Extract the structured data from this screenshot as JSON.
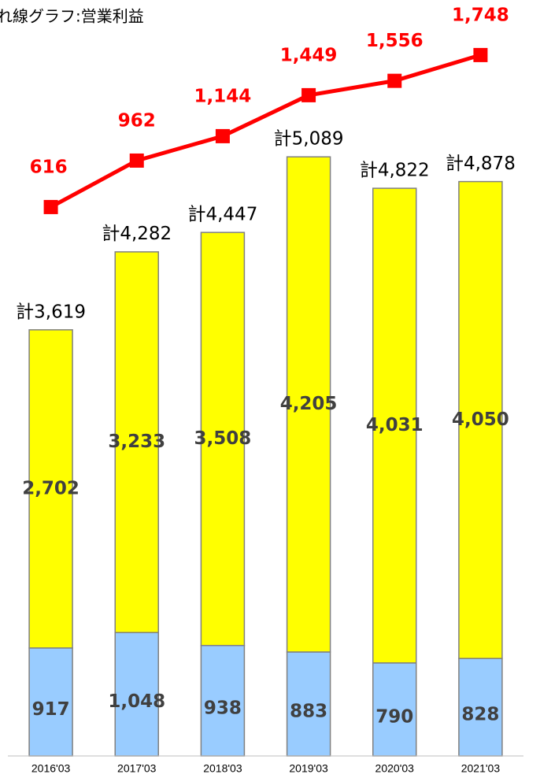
{
  "chart_data": {
    "type": "bar_line",
    "title": "れ線グラフ:営業利益",
    "categories": [
      "2016'03",
      "2017'03",
      "2018'03",
      "2019'03",
      "2020'03",
      "2021'03"
    ],
    "series": [
      {
        "color": "#99ccff",
        "values": [
          917,
          1048,
          938,
          883,
          790,
          828
        ],
        "value_labels": [
          "917",
          "1,048",
          "938",
          "883",
          "790",
          "828"
        ]
      },
      {
        "color": "#ffff00",
        "values": [
          2702,
          3233,
          3508,
          4205,
          4031,
          4050
        ],
        "value_labels": [
          "2,702",
          "3,233",
          "3,508",
          "4,205",
          "4,031",
          "4,050"
        ]
      },
      {
        "type": "line",
        "axis": "y2",
        "color": "#ff0000",
        "values": [
          616,
          962,
          1144,
          1449,
          1556,
          1748
        ],
        "value_labels": [
          "616",
          "962",
          "1,144",
          "1,449",
          "1,556",
          "1,748"
        ]
      }
    ],
    "totals": {
      "values": [
        3619,
        4282,
        4447,
        5089,
        4822,
        4878
      ],
      "value_labels": [
        "計3,619",
        "計4,282",
        "計4,447",
        "計5,089",
        "計4,822",
        "計4,878"
      ]
    },
    "ylim": [
      0,
      6420
    ],
    "y2lim": [
      -3472,
      2158
    ]
  }
}
